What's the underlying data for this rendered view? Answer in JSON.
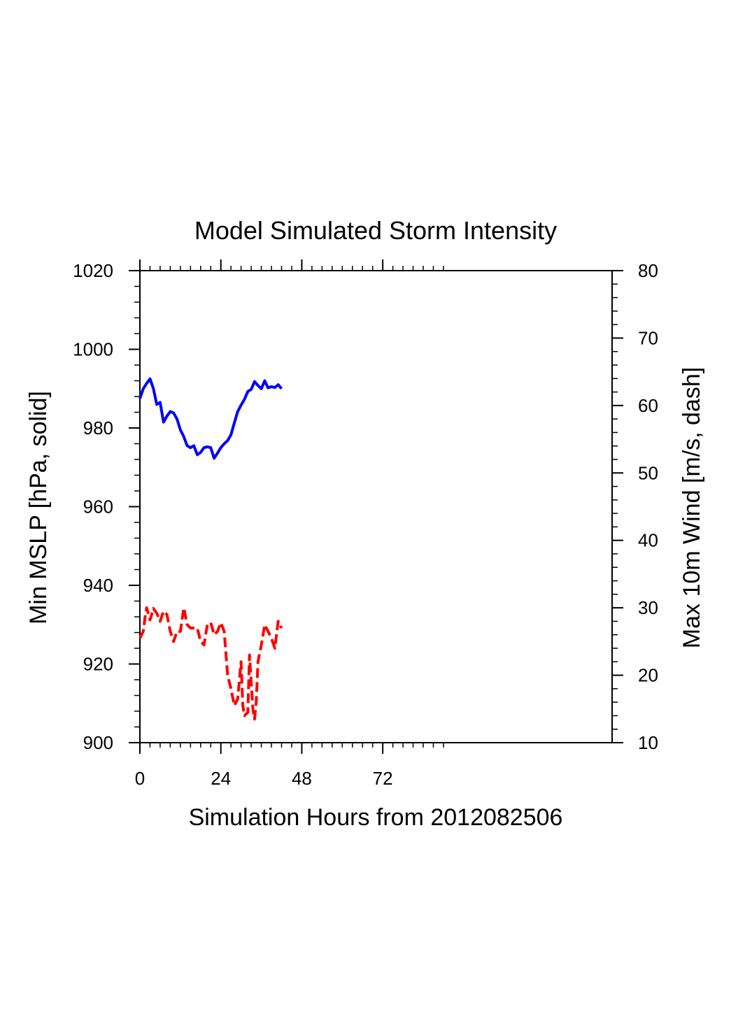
{
  "chart_data": {
    "type": "line",
    "title": "Model Simulated Storm Intensity",
    "xlabel": "Simulation Hours from 2012082506",
    "ylabel_left": "Min MSLP  [hPa, solid]",
    "ylabel_right": "Max 10m Wind  [m/s, dash]",
    "xlim": [
      0,
      140
    ],
    "ylim_left": [
      900,
      1020
    ],
    "ylim_right": [
      10,
      80
    ],
    "x_ticks": [
      0,
      24,
      48,
      72
    ],
    "x_tick_labels": [
      "0",
      "24",
      "48",
      "72"
    ],
    "y_left_ticks": [
      900,
      920,
      940,
      960,
      980,
      1000,
      1020
    ],
    "y_left_tick_labels": [
      "900",
      "920",
      "940",
      "960",
      "980",
      "1000",
      "1020"
    ],
    "y_right_ticks": [
      10,
      20,
      30,
      40,
      50,
      60,
      70,
      80
    ],
    "y_right_tick_labels": [
      "10",
      "20",
      "30",
      "40",
      "50",
      "60",
      "70",
      "80"
    ],
    "series": [
      {
        "name": "Min MSLP",
        "axis": "left",
        "style": "solid",
        "color": "#0000ff",
        "x": [
          0,
          1,
          2,
          3,
          4,
          5,
          6,
          7,
          8,
          9,
          10,
          11,
          12,
          13,
          14,
          15,
          16,
          17,
          18,
          19,
          20,
          21,
          22,
          23,
          24,
          25,
          26,
          27,
          28,
          29,
          30,
          31,
          32,
          33,
          34,
          35,
          36,
          37,
          38,
          39,
          40,
          41,
          42
        ],
        "values": [
          987.5,
          990,
          991.3,
          992.5,
          990,
          986,
          986.5,
          981.5,
          983,
          984.2,
          983.8,
          982.3,
          979.5,
          977.8,
          975.5,
          975,
          975.5,
          973.2,
          973.8,
          975,
          975.2,
          975,
          972.3,
          973.6,
          975,
          976,
          976.8,
          978.3,
          981.3,
          984.2,
          985.8,
          987.3,
          989.3,
          989.8,
          991.8,
          990.8,
          990,
          992,
          990.2,
          990.5,
          990.3,
          991,
          990
        ]
      },
      {
        "name": "Max 10m Wind",
        "axis": "right",
        "style": "dash",
        "color": "#ff0000",
        "x": [
          0,
          1,
          1.5,
          2,
          3,
          4,
          5,
          6,
          7,
          8,
          9,
          10,
          11,
          12,
          13,
          14,
          15,
          16,
          17,
          18,
          19,
          20,
          21,
          22,
          23,
          24,
          25,
          26,
          26.5,
          27,
          28,
          29,
          30,
          30.5,
          31,
          32,
          32.5,
          33,
          33.5,
          34,
          34.5,
          35,
          36,
          37,
          38,
          39,
          40,
          41,
          42
        ],
        "values": [
          25.5,
          26.5,
          28.5,
          30,
          28.2,
          29.9,
          29.2,
          28,
          29.5,
          29,
          26.5,
          25,
          26.5,
          26.5,
          30,
          27.5,
          27,
          27,
          27,
          25,
          24.5,
          27.5,
          27.8,
          26,
          26.5,
          27.8,
          26.5,
          20,
          19,
          18,
          15.5,
          16.5,
          22,
          15.5,
          14,
          14.5,
          23,
          19,
          15,
          13.5,
          16,
          22,
          24.5,
          27.5,
          26.5,
          25.5,
          24,
          28,
          27
        ]
      }
    ]
  }
}
